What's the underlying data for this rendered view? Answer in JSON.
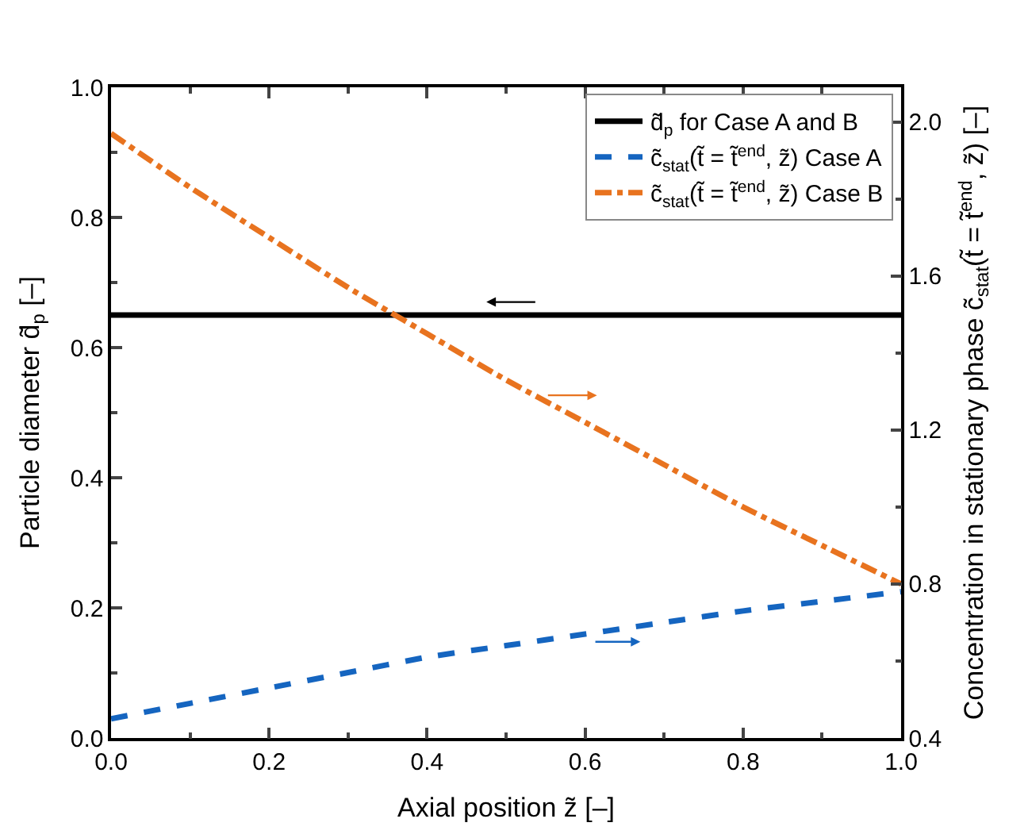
{
  "chart_data": {
    "type": "line",
    "xlabel": "Axial position z̃ [–]",
    "ylabel": "Particle diameter d̃$_{p}$ [–]",
    "y2label": "Concentration in stationary phase c̃$_{stat}$(t̃ = t̃$^{end}$, z̃) [–]",
    "x": [
      0,
      0.1,
      0.2,
      0.3,
      0.4,
      0.5,
      0.6,
      0.7,
      0.8,
      0.9,
      1.0
    ],
    "series": [
      {
        "name": "d̃$_{p}$ for Case A and B",
        "color": "#000000",
        "line_style": "solid",
        "values": [
          0.65,
          0.65,
          0.65,
          0.65,
          0.65,
          0.65,
          0.65,
          0.65,
          0.65,
          0.65,
          0.65
        ]
      },
      {
        "name": "c̃$_{stat}$(t̃ = t̃$^{end}$, z̃) Case A",
        "color": "#1565c0",
        "line_style": "dashed",
        "axis": "y2",
        "values": [
          0.45,
          0.49,
          0.53,
          0.57,
          0.61,
          0.64,
          0.67,
          0.7,
          0.73,
          0.755,
          0.78
        ]
      },
      {
        "name": "c̃$_{stat}$(t̃ = t̃$^{end}$, z̃) Case B",
        "color": "#e8731f",
        "line_style": "dashdot",
        "axis": "y2",
        "values": [
          1.97,
          1.83,
          1.7,
          1.57,
          1.45,
          1.33,
          1.22,
          1.11,
          1.0,
          0.9,
          0.8
        ]
      }
    ],
    "xlim": [
      0,
      1
    ],
    "xticks": [
      {
        "value": 0,
        "label": "0.0"
      },
      0.2,
      0.4,
      0.6,
      0.8,
      {
        "value": 1,
        "label": "1.0"
      }
    ],
    "ylim": [
      0,
      1
    ],
    "yticks": [
      {
        "value": 0,
        "label": "0.0"
      },
      0.2,
      0.4,
      0.6,
      0.8,
      {
        "value": 1,
        "label": "1.0"
      }
    ],
    "y2lim": [
      0.4,
      2.09
    ],
    "y2ticks": [
      0.4,
      0.8,
      1.2,
      1.6,
      {
        "value": 2,
        "label": "2.0"
      }
    ],
    "legend": "top right",
    "marker": "none"
  }
}
